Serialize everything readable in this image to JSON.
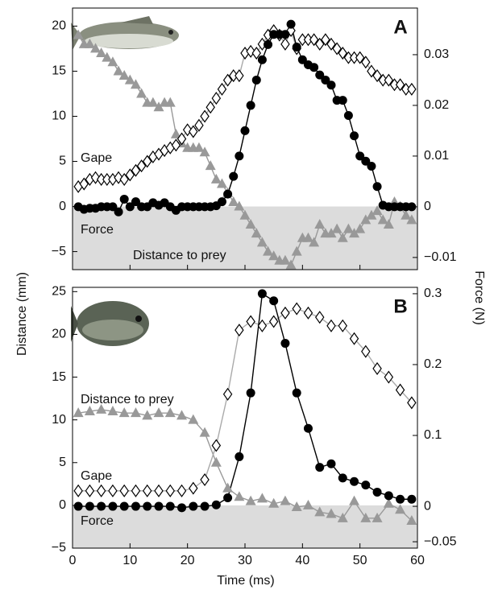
{
  "ylabel": "Distance (mm)",
  "y2label": "Force (N)",
  "xlabel": "Time (ms)",
  "chart_data": [
    {
      "type": "line",
      "panel": "A",
      "shade_below_zero": true,
      "annotations": [
        "Gape",
        "Force",
        "Distance to prey"
      ],
      "xlim": [
        0,
        60
      ],
      "xticks": [
        0,
        10,
        20,
        30,
        40,
        50,
        60
      ],
      "ylim": [
        -7,
        22
      ],
      "yticks": [
        {
          "value": -5,
          "label": "−5"
        },
        0,
        5,
        10,
        15,
        20
      ],
      "y2lim": [
        -0.0124,
        0.0392
      ],
      "y2ticks": [
        {
          "value": -0.01,
          "label": "−0.01"
        },
        0,
        0.01,
        0.02,
        0.03
      ],
      "x": [
        1,
        2,
        3,
        4,
        5,
        6,
        7,
        8,
        9,
        10,
        11,
        12,
        13,
        14,
        15,
        16,
        17,
        18,
        19,
        20,
        21,
        22,
        23,
        24,
        25,
        26,
        27,
        28,
        29,
        30,
        31,
        32,
        33,
        34,
        35,
        36,
        37,
        38,
        39,
        40,
        41,
        42,
        43,
        44,
        45,
        46,
        47,
        48,
        49,
        50,
        51,
        52,
        53,
        54,
        55,
        56,
        57,
        58,
        59
      ],
      "series": [
        {
          "name": "Distance to prey",
          "marker": "triangle",
          "color": "#999999",
          "line_color": "#999999",
          "values": [
            19,
            18,
            18,
            17.5,
            17,
            16.5,
            16,
            15,
            14.5,
            14,
            13.5,
            12.5,
            11.5,
            11.5,
            11,
            11.5,
            11.5,
            8,
            7,
            6.5,
            6.5,
            6.5,
            6,
            4.5,
            3,
            2.5,
            1.5,
            0.5,
            0,
            -1,
            -2,
            -3,
            -4,
            -5,
            -5.5,
            -6,
            -6,
            -6.5,
            -5,
            -3.5,
            -3.5,
            -4,
            -2,
            -3,
            -3,
            -2.5,
            -3.5,
            -2.5,
            -3,
            -2.5,
            -1.5,
            -1,
            -0.5,
            -1.5,
            -2,
            0.5,
            0,
            -1,
            -1.5
          ]
        },
        {
          "name": "Gape",
          "marker": "diamond",
          "color": "#ffffff",
          "line_color": "#aaaaaa",
          "values": [
            2.2,
            2.5,
            3,
            3.2,
            3,
            3,
            3,
            3.2,
            3,
            3.5,
            4,
            4.5,
            5,
            5.5,
            5.8,
            6.2,
            6.5,
            6.8,
            7.5,
            8.5,
            8.3,
            9,
            10,
            11,
            12,
            13,
            14,
            14.5,
            14.5,
            17,
            17.2,
            17,
            18,
            19,
            19.5,
            19,
            18,
            19.5,
            17.5,
            18.5,
            18.5,
            18.5,
            18,
            18.5,
            18,
            17.5,
            17,
            16.5,
            16.5,
            16.5,
            16,
            15,
            14.5,
            14,
            14,
            13.5,
            13.5,
            13,
            13
          ]
        },
        {
          "name": "Force",
          "marker": "circle",
          "color": "#000000",
          "line_color": "#000000",
          "axis": "y2",
          "values": [
            0,
            -0.0005,
            -0.0003,
            -0.0003,
            0,
            0,
            0,
            -0.001,
            0.0015,
            0,
            0.001,
            0,
            0,
            0.0008,
            0.0003,
            0.0008,
            0,
            -0.0007,
            0,
            0,
            0,
            0,
            0,
            0,
            0.0002,
            0.001,
            0.0025,
            0.006,
            0.01,
            0.015,
            0.02,
            0.025,
            0.029,
            0.032,
            0.034,
            0.034,
            0.034,
            0.036,
            0.0315,
            0.029,
            0.028,
            0.0275,
            0.026,
            0.025,
            0.024,
            0.021,
            0.021,
            0.018,
            0.014,
            0.01,
            0.009,
            0.008,
            0.004,
            0.0003,
            0,
            0,
            0,
            0,
            0
          ]
        }
      ]
    },
    {
      "type": "line",
      "panel": "B",
      "shade_below_zero": true,
      "annotations": [
        "Distance to prey",
        "Gape",
        "Force"
      ],
      "xlim": [
        0,
        60
      ],
      "xticks": [
        0,
        10,
        20,
        30,
        40,
        50,
        60
      ],
      "ylim": [
        -5,
        25.5
      ],
      "yticks": [
        {
          "value": -5,
          "label": "−5"
        },
        0,
        5,
        10,
        15,
        20,
        25
      ],
      "y2lim": [
        -0.059,
        0.309
      ],
      "y2ticks": [
        {
          "value": -0.05,
          "label": "−0.05"
        },
        0,
        0.1,
        0.2,
        0.3
      ],
      "x": [
        1,
        3,
        5,
        7,
        9,
        11,
        13,
        15,
        17,
        19,
        21,
        23,
        25,
        27,
        29,
        31,
        33,
        35,
        37,
        39,
        41,
        43,
        45,
        47,
        49,
        51,
        53,
        55,
        57,
        59
      ],
      "series": [
        {
          "name": "Distance to prey",
          "marker": "triangle",
          "color": "#999999",
          "line_color": "#999999",
          "values": [
            10.8,
            11,
            11.2,
            11,
            10.8,
            10.8,
            10.5,
            10.8,
            10.8,
            10.5,
            10,
            8.5,
            5,
            2,
            1,
            0.5,
            0.8,
            0.2,
            0.5,
            -0.2,
            0,
            -0.8,
            -1,
            -1.5,
            0.5,
            -1.5,
            -1.5,
            0.2,
            -0.5,
            -1.8
          ]
        },
        {
          "name": "Gape",
          "marker": "diamond",
          "color": "#ffffff",
          "line_color": "#aaaaaa",
          "values": [
            1.7,
            1.7,
            1.7,
            1.7,
            1.7,
            1.7,
            1.7,
            1.7,
            1.7,
            1.7,
            2,
            3,
            7,
            13,
            20.5,
            21.5,
            21,
            21.5,
            22.5,
            23,
            22.5,
            22,
            21,
            21,
            19.5,
            18,
            16,
            15,
            13.5,
            12
          ]
        },
        {
          "name": "Force",
          "marker": "circle",
          "color": "#000000",
          "line_color": "#000000",
          "axis": "y2",
          "values": [
            0,
            0,
            0,
            0,
            0,
            0,
            0,
            0,
            0,
            -0.002,
            0,
            0,
            0.002,
            0.012,
            0.07,
            0.16,
            0.3,
            0.29,
            0.23,
            0.16,
            0.11,
            0.055,
            0.06,
            0.04,
            0.035,
            0.03,
            0.02,
            0.015,
            0.01,
            0.01
          ]
        }
      ]
    }
  ]
}
